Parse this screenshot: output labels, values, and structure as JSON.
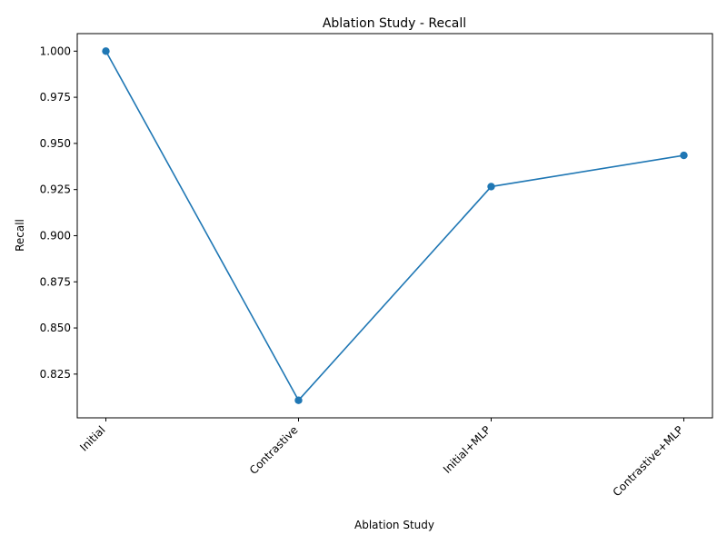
{
  "chart_data": {
    "type": "line",
    "title": "Ablation Study - Recall",
    "xlabel": "Ablation Study",
    "ylabel": "Recall",
    "categories": [
      "Initial",
      "Contrastive",
      "Initial+MLP",
      "Contrastive+MLP"
    ],
    "series": [
      {
        "values": [
          1.0,
          0.8108,
          0.9266,
          0.9435
        ],
        "color": "#1f77b4",
        "marker": "circle"
      }
    ],
    "ylim": [
      0.8013,
      1.0095
    ],
    "yticks": [
      "0.825",
      "0.850",
      "0.875",
      "0.900",
      "0.925",
      "0.950",
      "0.975",
      "1.000"
    ],
    "grid": false,
    "legend": "none",
    "xtick_rotation": 45
  }
}
